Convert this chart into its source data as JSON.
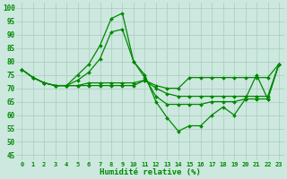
{
  "background_color": "#cce8df",
  "grid_color": "#aaccbb",
  "line_color": "#008800",
  "marker_color": "#008800",
  "xlabel": "Humidité relative (%)",
  "xlabel_color": "#008800",
  "ylabel_ticks": [
    45,
    50,
    55,
    60,
    65,
    70,
    75,
    80,
    85,
    90,
    95,
    100
  ],
  "xlim": [
    -0.5,
    23.5
  ],
  "ylim": [
    43,
    102
  ],
  "xtick_labels": [
    "0",
    "1",
    "2",
    "3",
    "4",
    "5",
    "6",
    "7",
    "8",
    "9",
    "10",
    "11",
    "12",
    "13",
    "14",
    "15",
    "16",
    "17",
    "18",
    "19",
    "20",
    "21",
    "22",
    "23"
  ],
  "series": [
    [
      77,
      74,
      72,
      71,
      71,
      75,
      79,
      86,
      96,
      98,
      80,
      75,
      65,
      59,
      54,
      56,
      56,
      60,
      63,
      60,
      66,
      75,
      66,
      79
    ],
    [
      77,
      74,
      72,
      71,
      71,
      73,
      76,
      81,
      91,
      92,
      80,
      74,
      67,
      64,
      64,
      64,
      64,
      65,
      65,
      65,
      66,
      66,
      66,
      79
    ],
    [
      77,
      74,
      72,
      71,
      71,
      71,
      72,
      72,
      72,
      72,
      72,
      73,
      70,
      68,
      67,
      67,
      67,
      67,
      67,
      67,
      67,
      67,
      67,
      79
    ],
    [
      77,
      74,
      72,
      71,
      71,
      71,
      71,
      71,
      71,
      71,
      71,
      73,
      71,
      70,
      70,
      74,
      74,
      74,
      74,
      74,
      74,
      74,
      74,
      79
    ]
  ]
}
